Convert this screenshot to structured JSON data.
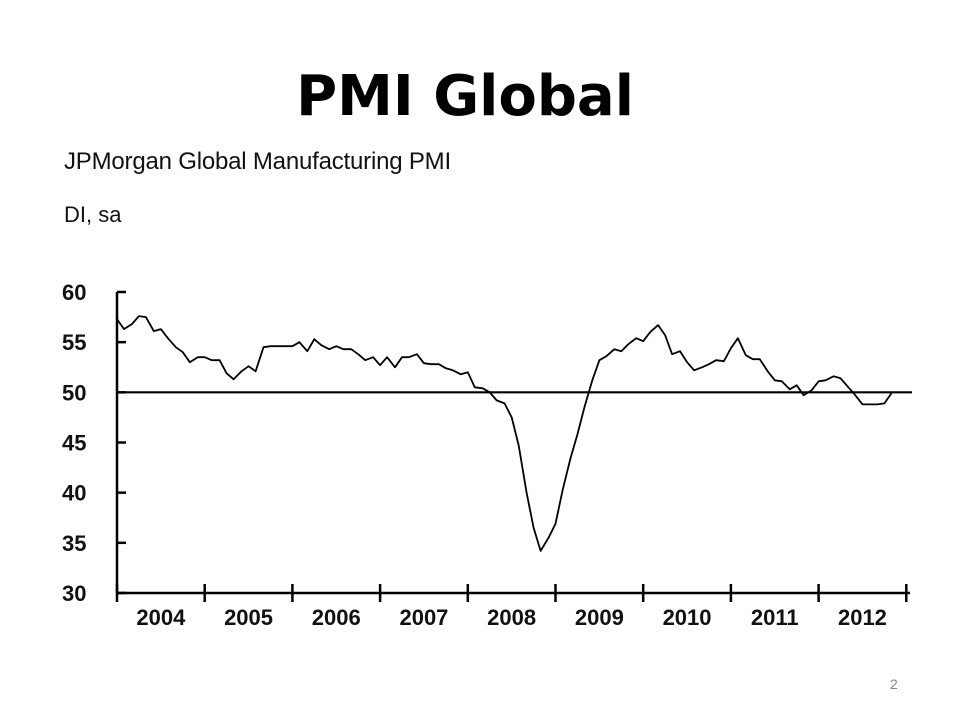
{
  "slide": {
    "title": "PMI Global",
    "page_number": "2"
  },
  "chart_data": {
    "type": "line",
    "title": "JPMorgan Global Manufacturing PMI",
    "subtitle": "DI, sa",
    "xlabel": "",
    "ylabel": "",
    "ylim": [
      30,
      60
    ],
    "yticks": [
      60,
      55,
      50,
      45,
      40,
      35,
      30
    ],
    "year_labels": [
      "2004",
      "2005",
      "2006",
      "2007",
      "2008",
      "2009",
      "2010",
      "2011",
      "2012"
    ],
    "xlim": [
      2004.0,
      2012.85
    ],
    "reference_line": 50,
    "grid": false,
    "legend": "none",
    "line_color": "#000000",
    "series": [
      {
        "x": [
          2004.0,
          2004.08,
          2004.17,
          2004.25,
          2004.33,
          2004.42,
          2004.5,
          2004.58,
          2004.67,
          2004.75,
          2004.83,
          2004.92,
          2005.0,
          2005.08,
          2005.17,
          2005.25,
          2005.33,
          2005.42,
          2005.5,
          2005.58,
          2005.67,
          2005.75,
          2005.83,
          2005.92,
          2006.0,
          2006.08,
          2006.17,
          2006.25,
          2006.33,
          2006.42,
          2006.5,
          2006.58,
          2006.67,
          2006.75,
          2006.83,
          2006.92,
          2007.0,
          2007.08,
          2007.17,
          2007.25,
          2007.33,
          2007.42,
          2007.5,
          2007.58,
          2007.67,
          2007.75,
          2007.83,
          2007.92,
          2008.0,
          2008.08,
          2008.17,
          2008.25,
          2008.33,
          2008.42,
          2008.5,
          2008.58,
          2008.67,
          2008.75,
          2008.83,
          2008.92,
          2009.0,
          2009.08,
          2009.17,
          2009.25,
          2009.33,
          2009.42,
          2009.5,
          2009.58,
          2009.67,
          2009.75,
          2009.83,
          2009.92,
          2010.0,
          2010.08,
          2010.17,
          2010.25,
          2010.33,
          2010.42,
          2010.5,
          2010.58,
          2010.67,
          2010.75,
          2010.83,
          2010.92,
          2011.0,
          2011.08,
          2011.17,
          2011.25,
          2011.33,
          2011.42,
          2011.5,
          2011.58,
          2011.67,
          2011.75,
          2011.83,
          2011.92,
          2012.0,
          2012.08,
          2012.17,
          2012.25,
          2012.33,
          2012.42,
          2012.5,
          2012.58,
          2012.67,
          2012.75,
          2012.83
        ],
        "values": [
          57.3,
          56.3,
          56.8,
          57.6,
          57.5,
          56.1,
          56.3,
          55.4,
          54.5,
          54.0,
          53.0,
          53.5,
          53.5,
          53.2,
          53.2,
          51.9,
          51.3,
          52.1,
          52.6,
          52.1,
          54.5,
          54.6,
          54.6,
          54.6,
          54.6,
          55.0,
          54.1,
          55.3,
          54.7,
          54.3,
          54.6,
          54.3,
          54.3,
          53.8,
          53.2,
          53.5,
          52.7,
          53.5,
          52.5,
          53.5,
          53.5,
          53.8,
          52.9,
          52.8,
          52.8,
          52.4,
          52.2,
          51.8,
          52.0,
          50.5,
          50.4,
          50.0,
          49.2,
          48.9,
          47.5,
          44.7,
          40.0,
          36.5,
          34.2,
          35.5,
          36.9,
          40.2,
          43.4,
          45.8,
          48.5,
          51.2,
          53.2,
          53.6,
          54.3,
          54.1,
          54.8,
          55.4,
          55.1,
          56.0,
          56.7,
          55.7,
          53.8,
          54.1,
          53.0,
          52.2,
          52.5,
          52.8,
          53.2,
          53.1,
          54.4,
          55.4,
          53.7,
          53.3,
          53.3,
          52.1,
          51.2,
          51.1,
          50.3,
          50.7,
          49.7,
          50.2,
          51.1,
          51.2,
          51.6,
          51.4,
          50.6,
          49.7,
          48.8,
          48.8,
          48.8,
          48.9,
          49.9
        ]
      }
    ]
  }
}
